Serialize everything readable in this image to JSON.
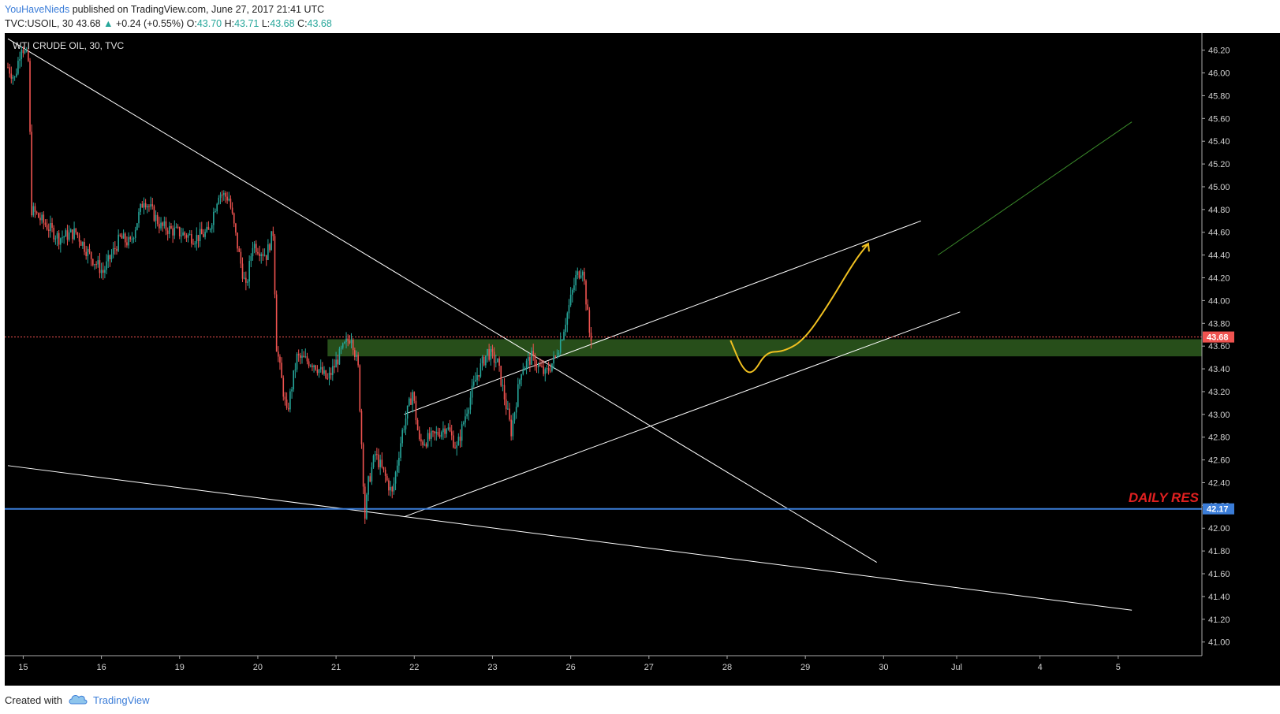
{
  "header": {
    "author": "YouHaveNieds",
    "published_text": "published on TradingView.com, June 27, 2017 21:41 UTC",
    "symbol": "TVC:USOIL, 30",
    "last": "43.68",
    "change": "+0.24 (+0.55%)",
    "o_label": "O:",
    "o_value": "43.70",
    "h_label": "H:",
    "h_value": "43.71",
    "l_label": "L:",
    "l_value": "43.68",
    "c_label": "C:",
    "c_value": "43.68"
  },
  "footer": {
    "created_with": "Created with",
    "brand": "TradingView"
  },
  "chart_data": {
    "type": "candlestick",
    "title": "WTI CRUDE OIL, 30, TVC",
    "y_ticks": [
      "46.20",
      "46.00",
      "45.80",
      "45.60",
      "45.40",
      "45.20",
      "45.00",
      "44.80",
      "44.60",
      "44.40",
      "44.20",
      "44.00",
      "43.80",
      "43.60",
      "43.40",
      "43.20",
      "43.00",
      "42.80",
      "42.60",
      "42.40",
      "42.20",
      "42.00",
      "41.80",
      "41.60",
      "41.40",
      "41.20",
      "41.00"
    ],
    "ylim": [
      40.88,
      46.35
    ],
    "x_ticks": [
      {
        "label": "15",
        "idx": 9
      },
      {
        "label": "16",
        "idx": 55
      },
      {
        "label": "19",
        "idx": 101
      },
      {
        "label": "20",
        "idx": 147
      },
      {
        "label": "21",
        "idx": 193
      },
      {
        "label": "22",
        "idx": 239
      },
      {
        "label": "23",
        "idx": 285
      },
      {
        "label": "26",
        "idx": 331
      },
      {
        "label": "27",
        "idx": 377
      },
      {
        "label": "28",
        "idx": 423
      },
      {
        "label": "29",
        "idx": 469
      },
      {
        "label": "30",
        "idx": 515
      },
      {
        "label": "Jul",
        "idx": 558
      },
      {
        "label": "4",
        "idx": 607
      },
      {
        "label": "5",
        "idx": 653
      }
    ],
    "price_path": [
      [
        0,
        46.05
      ],
      [
        4,
        45.95
      ],
      [
        8,
        46.25
      ],
      [
        12,
        46.1
      ],
      [
        14,
        44.8
      ],
      [
        20,
        44.7
      ],
      [
        30,
        44.55
      ],
      [
        40,
        44.6
      ],
      [
        48,
        44.4
      ],
      [
        56,
        44.25
      ],
      [
        66,
        44.55
      ],
      [
        72,
        44.5
      ],
      [
        80,
        44.9
      ],
      [
        90,
        44.65
      ],
      [
        100,
        44.6
      ],
      [
        110,
        44.55
      ],
      [
        118,
        44.6
      ],
      [
        124,
        44.95
      ],
      [
        130,
        44.9
      ],
      [
        136,
        44.4
      ],
      [
        140,
        44.1
      ],
      [
        144,
        44.5
      ],
      [
        152,
        44.4
      ],
      [
        156,
        44.6
      ],
      [
        158,
        43.6
      ],
      [
        164,
        43.0
      ],
      [
        170,
        43.5
      ],
      [
        180,
        43.45
      ],
      [
        188,
        43.3
      ],
      [
        196,
        43.55
      ],
      [
        202,
        43.7
      ],
      [
        206,
        43.4
      ],
      [
        210,
        42.1
      ],
      [
        212,
        42.4
      ],
      [
        216,
        42.65
      ],
      [
        222,
        42.45
      ],
      [
        226,
        42.3
      ],
      [
        232,
        42.85
      ],
      [
        238,
        43.2
      ],
      [
        242,
        42.75
      ],
      [
        250,
        42.8
      ],
      [
        258,
        42.9
      ],
      [
        264,
        42.7
      ],
      [
        270,
        43.05
      ],
      [
        276,
        43.35
      ],
      [
        282,
        43.55
      ],
      [
        288,
        43.45
      ],
      [
        292,
        43.15
      ],
      [
        296,
        42.85
      ],
      [
        302,
        43.4
      ],
      [
        308,
        43.5
      ],
      [
        316,
        43.35
      ],
      [
        322,
        43.5
      ],
      [
        326,
        43.7
      ],
      [
        330,
        43.95
      ],
      [
        334,
        44.2
      ],
      [
        338,
        44.3
      ],
      [
        342,
        43.72
      ],
      [
        343,
        43.68
      ]
    ],
    "levels": [
      {
        "name": "last_price",
        "value": 43.68,
        "label": "43.68",
        "color": "#ef5350"
      },
      {
        "name": "daily_res",
        "value": 42.17,
        "label": "42.17",
        "color": "#3b7dd8",
        "annotation": "DAILY RES"
      }
    ],
    "zone": {
      "from": 43.51,
      "to": 43.66,
      "color": "#2e5c1e"
    },
    "trendlines": [
      {
        "name": "downtrend-resistance",
        "from": {
          "idx": 0,
          "price": 46.3
        },
        "to": {
          "idx": 511,
          "price": 41.7
        },
        "color": "#ffffff"
      },
      {
        "name": "lower-wedge-support",
        "from": {
          "idx": 0,
          "price": 42.55
        },
        "to": {
          "idx": 661,
          "price": 41.28
        },
        "color": "#ffffff"
      },
      {
        "name": "channel-top",
        "from": {
          "idx": 233,
          "price": 43.0
        },
        "to": {
          "idx": 537,
          "price": 44.7
        },
        "color": "#ffffff"
      },
      {
        "name": "channel-bottom",
        "from": {
          "idx": 233,
          "price": 42.1
        },
        "to": {
          "idx": 560,
          "price": 43.9
        },
        "color": "#ffffff"
      },
      {
        "name": "target-projection",
        "from": {
          "idx": 547,
          "price": 44.4
        },
        "to": {
          "idx": 661,
          "price": 45.57
        },
        "color": "#3a8a2a"
      }
    ],
    "projection_path": [
      [
        425,
        43.65
      ],
      [
        432,
        43.4
      ],
      [
        438,
        43.35
      ],
      [
        446,
        43.55
      ],
      [
        456,
        43.55
      ],
      [
        468,
        43.65
      ],
      [
        482,
        43.95
      ],
      [
        498,
        44.35
      ],
      [
        506,
        44.5
      ]
    ],
    "projection_color": "#f0c020",
    "candle_up_color": "#26a69a",
    "candle_down_color": "#ef5350",
    "background": "#000000"
  }
}
